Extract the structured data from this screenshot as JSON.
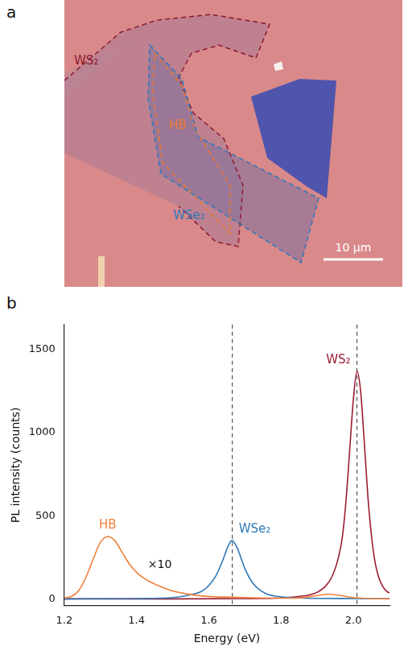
{
  "micrograph": {
    "letter": "a",
    "regions": [
      {
        "label": "WS₂",
        "color": "#8b1a2e"
      },
      {
        "label": "HB",
        "color": "#e8792f"
      },
      {
        "label": "WSe₂",
        "color": "#2f79b9"
      }
    ],
    "scale_bar": "10 μm"
  },
  "chart_data": {
    "type": "line",
    "letter": "b",
    "x_label": "Energy (eV)",
    "y_label": "PL intensity (counts)",
    "xlim": [
      1.2,
      2.1
    ],
    "xticks": [
      1.2,
      1.4,
      1.6,
      1.8,
      {
        "value": 2,
        "label": "2.0"
      }
    ],
    "ylim": [
      -40,
      1650
    ],
    "yticks": [
      0,
      500,
      1000,
      1500
    ],
    "grid": false,
    "annotations": [
      "×10"
    ],
    "reference_lines": {
      "x": [
        1.665,
        2.01
      ],
      "line_style": "dashed"
    },
    "series": [
      {
        "name": "HB",
        "color": "#f07f3a",
        "x": [
          1.2,
          1.22,
          1.24,
          1.26,
          1.28,
          1.3,
          1.32,
          1.34,
          1.36,
          1.38,
          1.4,
          1.42,
          1.44,
          1.46,
          1.48,
          1.5,
          1.54,
          1.58,
          1.62,
          1.66,
          1.7,
          1.75,
          1.8,
          1.85,
          1.9,
          1.93,
          1.96,
          2.0,
          2.05,
          2.1
        ],
        "values": [
          5,
          15,
          50,
          130,
          240,
          340,
          375,
          350,
          280,
          210,
          160,
          125,
          100,
          80,
          62,
          48,
          30,
          18,
          12,
          10,
          8,
          5,
          4,
          6,
          20,
          28,
          22,
          8,
          2,
          0
        ]
      },
      {
        "name": "WSe₂",
        "color": "#2f79b9",
        "x": [
          1.2,
          1.4,
          1.5,
          1.55,
          1.58,
          1.6,
          1.62,
          1.64,
          1.65,
          1.66,
          1.665,
          1.67,
          1.68,
          1.69,
          1.7,
          1.72,
          1.74,
          1.76,
          1.8,
          1.85,
          1.9,
          2.0,
          2.1
        ],
        "values": [
          0,
          2,
          8,
          25,
          45,
          80,
          140,
          240,
          300,
          345,
          350,
          340,
          300,
          240,
          180,
          100,
          55,
          30,
          12,
          5,
          3,
          2,
          1
        ]
      },
      {
        "name": "WS₂",
        "color": "#9b1c31",
        "x": [
          1.2,
          1.5,
          1.7,
          1.8,
          1.85,
          1.88,
          1.9,
          1.92,
          1.94,
          1.96,
          1.97,
          1.98,
          1.99,
          2.0,
          2.01,
          2.02,
          2.03,
          2.04,
          2.05,
          2.06,
          2.07,
          2.08,
          2.09,
          2.1
        ],
        "values": [
          0,
          0,
          2,
          5,
          15,
          25,
          40,
          70,
          130,
          260,
          380,
          600,
          900,
          1200,
          1370,
          1250,
          950,
          620,
          380,
          220,
          130,
          80,
          50,
          35
        ]
      }
    ]
  }
}
